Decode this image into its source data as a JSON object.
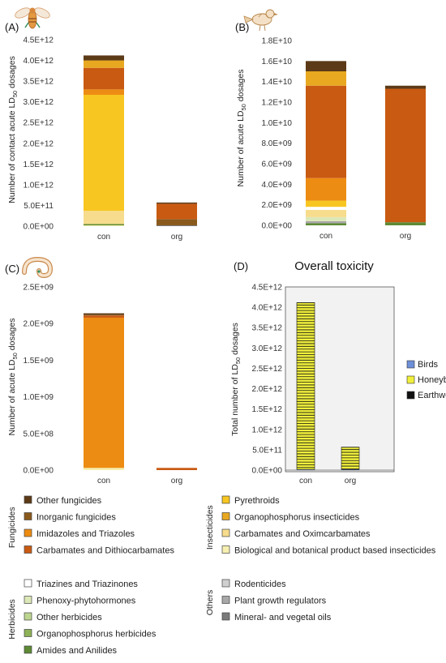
{
  "chart_data": [
    {
      "panel": "(A)",
      "type": "bar",
      "stacked": true,
      "categories": [
        "con",
        "org"
      ],
      "ylabel_pre": "Number of contact acute LD",
      "ylabel_sub": "50",
      "ylabel_post": " dosages",
      "ylim": [
        0,
        4500000000000.0
      ],
      "yticks": [
        "0.0E+00",
        "5.0E+11",
        "1.0E+12",
        "1.5E+12",
        "2.0E+12",
        "2.5E+12",
        "3.0E+12",
        "3.5E+12",
        "4.0E+12",
        "4.5E+12"
      ],
      "series": [
        {
          "name": "Biological and botanical product based insecticides",
          "values": [
            20000000000.0,
            0
          ]
        },
        {
          "name": "Amides and Anilides",
          "values": [
            30000000000.0,
            0
          ]
        },
        {
          "name": "Carbamates and Oximcarbamates",
          "values": [
            320000000000.0,
            0
          ]
        },
        {
          "name": "Pyrethroids",
          "values": [
            2800000000000.0,
            0
          ]
        },
        {
          "name": "Imidazoles and Triazoles",
          "values": [
            130000000000.0,
            0
          ]
        },
        {
          "name": "Mineral- and vegetal oils",
          "values": [
            0,
            20000000000.0
          ]
        },
        {
          "name": "Inorganic fungicides",
          "values": [
            0,
            150000000000.0
          ]
        },
        {
          "name": "Carbamates and Dithiocarbamates",
          "values": [
            520000000000.0,
            370000000000.0
          ]
        },
        {
          "name": "Organophosphorus insecticides",
          "values": [
            180000000000.0,
            0
          ]
        },
        {
          "name": "Other fungicides",
          "values": [
            120000000000.0,
            30000000000.0
          ]
        }
      ]
    },
    {
      "panel": "(B)",
      "type": "bar",
      "stacked": true,
      "categories": [
        "con",
        "org"
      ],
      "ylabel_pre": "Number of acute LD",
      "ylabel_sub": "50",
      "ylabel_post": " dosages",
      "ylim": [
        0,
        18000000000.0
      ],
      "yticks": [
        "0.0E+00",
        "2.0E+09",
        "4.0E+09",
        "6.0E+09",
        "8.0E+09",
        "1.0E+10",
        "1.2E+10",
        "1.4E+10",
        "1.6E+10",
        "1.8E+10"
      ],
      "series": [
        {
          "name": "Amides and Anilides",
          "values": [
            200000000.0,
            300000000.0
          ]
        },
        {
          "name": "Plant growth regulators",
          "values": [
            200000000.0,
            0
          ]
        },
        {
          "name": "Phenoxy-phytohormones",
          "values": [
            400000000.0,
            0
          ]
        },
        {
          "name": "Carbamates and Oximcarbamates",
          "values": [
            700000000.0,
            0
          ]
        },
        {
          "name": "Triazines and Triazinones",
          "values": [
            300000000.0,
            0
          ]
        },
        {
          "name": "Pyrethroids",
          "values": [
            600000000.0,
            0
          ]
        },
        {
          "name": "Imidazoles and Triazoles",
          "values": [
            2200000000.0,
            0
          ]
        },
        {
          "name": "Carbamates and Dithiocarbamates",
          "values": [
            9000000000.0,
            13000000000.0
          ]
        },
        {
          "name": "Organophosphorus insecticides",
          "values": [
            1400000000.0,
            0
          ]
        },
        {
          "name": "Other fungicides",
          "values": [
            1000000000.0,
            300000000.0
          ]
        }
      ]
    },
    {
      "panel": "(C)",
      "type": "bar",
      "stacked": true,
      "categories": [
        "con",
        "org"
      ],
      "ylabel_pre": "Number of acute LD",
      "ylabel_sub": "50",
      "ylabel_post": " dosages",
      "ylim": [
        0,
        2500000000.0
      ],
      "yticks": [
        "0.0E+00",
        "5.0E+08",
        "1.0E+09",
        "1.5E+09",
        "2.0E+09",
        "2.5E+09"
      ],
      "series": [
        {
          "name": "Biological and botanical product based insecticides",
          "values": [
            30000000.0,
            0
          ]
        },
        {
          "name": "Imidazoles and Triazoles",
          "values": [
            2050000000.0,
            0
          ]
        },
        {
          "name": "Carbamates and Dithiocarbamates",
          "values": [
            30000000.0,
            30000000.0
          ]
        },
        {
          "name": "Inorganic fungicides",
          "values": [
            10000000.0,
            0
          ]
        },
        {
          "name": "Other fungicides",
          "values": [
            20000000.0,
            0
          ]
        }
      ]
    },
    {
      "panel": "(D)",
      "type": "bar",
      "stacked": true,
      "title": "Overall toxicity",
      "categories": [
        "con",
        "org"
      ],
      "ylabel_pre": "Total number of LD",
      "ylabel_sub": "50",
      "ylabel_post": " dosages",
      "ylim": [
        0,
        4500000000000.0
      ],
      "yticks": [
        "0.0E+00",
        "5.0E+11",
        "1.0E+12",
        "1.5E+12",
        "2.0E+12",
        "2.5E+12",
        "3.0E+12",
        "3.5E+12",
        "4.0E+12",
        "4.5E+12"
      ],
      "series": [
        {
          "name": "Birds",
          "values": [
            15000000000.0,
            14000000000.0
          ]
        },
        {
          "name": "Honeybees",
          "values": [
            4100000000000.0,
            550000000000.0
          ]
        },
        {
          "name": "Earthworms",
          "values": [
            2000000000.0,
            100000000.0
          ]
        }
      ],
      "legend": "right"
    }
  ],
  "legend": {
    "groups": [
      {
        "label": "Fungicides",
        "items": [
          "Other fungicides",
          "Inorganic fungicides",
          "Imidazoles and Triazoles",
          "Carbamates and Dithiocarbamates"
        ]
      },
      {
        "label": "Insecticides",
        "items": [
          "Pyrethroids",
          "Organophosphorus insecticides",
          "Carbamates and Oximcarbamates",
          "Biological and botanical product based insecticides"
        ]
      },
      {
        "label": "Herbicides",
        "items": [
          "Triazines and Triazinones",
          "Phenoxy-phytohormones",
          "Other herbicides",
          "Organophosphorus herbicides",
          "Amides and Anilides"
        ]
      },
      {
        "label": "Others",
        "items": [
          "Rodenticides",
          "Plant growth regulators",
          "Mineral- and vegetal oils"
        ]
      }
    ]
  },
  "colors": {
    "Other fungicides": "#5c3a17",
    "Inorganic fungicides": "#8a5a1c",
    "Imidazoles and Triazoles": "#ed8c12",
    "Carbamates and Dithiocarbamates": "#c95a12",
    "Pyrethroids": "#f8c620",
    "Organophosphorus insecticides": "#e8a820",
    "Carbamates and Oximcarbamates": "#f6dc8c",
    "Biological and botanical product based insecticides": "#f6efb0",
    "Triazines and Triazinones": "#ffffff",
    "Phenoxy-phytohormones": "#dde8b8",
    "Other herbicides": "#bcd690",
    "Organophosphorus herbicides": "#8db257",
    "Amides and Anilides": "#5e8a35",
    "Rodenticides": "#d0d0d0",
    "Plant growth regulators": "#a8a8a8",
    "Mineral- and vegetal oils": "#7a7a7a",
    "Birds": "#6f8fd8",
    "Honeybees": "#f0ef3c",
    "Earthworms": "#111111"
  },
  "icons": {
    "panel_a": "bee-icon",
    "panel_b": "bird-icon",
    "panel_c": "worm-icon"
  }
}
